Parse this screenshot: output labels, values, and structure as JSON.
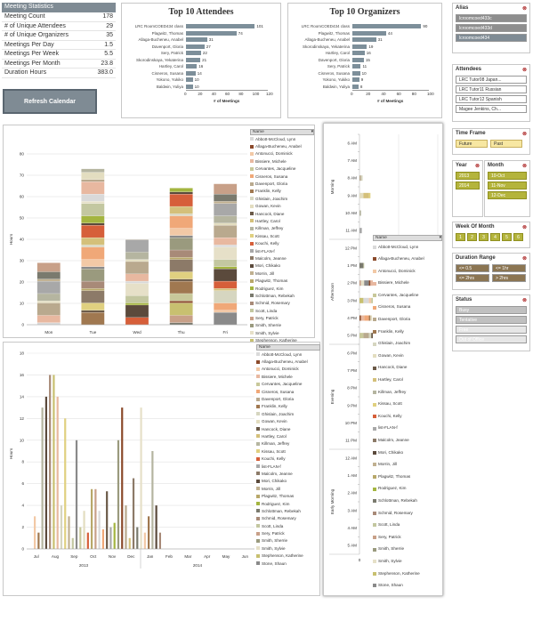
{
  "stats": {
    "title": "Meeting Statistics",
    "rows": [
      {
        "label": "Meeting Count",
        "value": "178"
      },
      {
        "label": "# of Unique Attendees",
        "value": "29"
      },
      {
        "label": "# of Unique Organizers",
        "value": "35"
      },
      {
        "label": "Meetings Per Day",
        "value": "1.5"
      },
      {
        "label": "Meetings Per Week",
        "value": "5.5"
      },
      {
        "label": "Meetings Per Month",
        "value": "23.8"
      },
      {
        "label": "Duration Hours",
        "value": "383.0"
      }
    ],
    "refresh_label": "Refresh Calendar"
  },
  "chart_data": [
    {
      "type": "bar",
      "title": "Top 10 Attendees",
      "xlabel": "# of Meetings",
      "xlim": [
        0,
        120
      ],
      "ticks": [
        "0",
        "20",
        "40",
        "60",
        "80",
        "100",
        "120"
      ],
      "categories": [
        "LRC RoomCOED434 class",
        "Plagwitz, Thomas",
        "Allaga-Bucheneu, Anabel",
        "Davenport, Gloria",
        "Sery, Patrick",
        "Skorodinskaya, Yekaterina",
        "Hartley, Carol",
        "Cisneros, Susana",
        "Yokono, Yukiko",
        "Baldwin, Yuliya"
      ],
      "values": [
        101,
        74,
        31,
        27,
        22,
        21,
        16,
        14,
        10,
        10
      ]
    },
    {
      "type": "bar",
      "title": "Top 10 Organizers",
      "xlabel": "# of Meetings",
      "xlim": [
        0,
        100
      ],
      "ticks": [
        "0",
        "20",
        "40",
        "60",
        "80",
        "100"
      ],
      "categories": [
        "LRC RoomCOED434 class",
        "Plagwitz, Thomas",
        "Allaga-Bucheneu, Anabel",
        "Skorodinskaya, Yekaterina",
        "Hartley, Carol",
        "Davenport, Gloria",
        "Sery, Patrick",
        "Cisneros, Susana",
        "Yokono, Yukiko",
        "Baldwin, Yuliya"
      ],
      "values": [
        90,
        44,
        31,
        19,
        16,
        15,
        11,
        10,
        9,
        8
      ]
    },
    {
      "type": "bar",
      "stacked": true,
      "ylabel": "Hours",
      "ylim": [
        0,
        80
      ],
      "yticks": [
        "0",
        "10",
        "20",
        "30",
        "40",
        "50",
        "60",
        "70",
        "80"
      ],
      "categories": [
        "Mon",
        "Tue",
        "Wed",
        "Thu",
        "Fri"
      ],
      "totals": [
        29,
        73,
        40,
        64,
        66
      ]
    },
    {
      "type": "bar",
      "ylabel": "Hours",
      "ylim": [
        0,
        18
      ],
      "yticks": [
        "0",
        "2",
        "4",
        "6",
        "8",
        "10",
        "12",
        "14",
        "16",
        "18"
      ],
      "months": [
        "Jul",
        "Aug",
        "Sep",
        "Oct",
        "Nov",
        "Dec",
        "Jan",
        "Feb",
        "Mar",
        "Apr",
        "May",
        "Jun"
      ],
      "years": [
        "2013",
        "2014"
      ],
      "values": [
        3.0,
        1.5,
        13.0,
        14.0,
        16.0,
        16.0,
        14.0,
        4.0,
        12.0,
        3.0,
        1.0,
        10.0,
        2.0,
        3.5,
        1.5,
        5.5,
        5.5,
        3.5,
        1.8,
        5.3,
        2.0,
        2.4,
        10.0,
        13.0,
        4.0,
        1.0,
        6.5,
        2.0,
        13.0,
        1.5,
        3.0,
        9.0,
        4.0,
        1.5
      ]
    },
    {
      "type": "bar",
      "orientation": "horizontal",
      "xlabel": "Hours",
      "xlim": [
        0,
        100
      ],
      "ticks": [
        "0",
        "50",
        "100"
      ],
      "groups": [
        "Morning",
        "Afternoon",
        "Evening",
        "Early Morning"
      ],
      "categories": [
        "6 AM",
        "7 AM",
        "8 AM",
        "9 AM",
        "10 AM",
        "11 AM",
        "12 PM",
        "1 PM",
        "2 PM",
        "3 PM",
        "4 PM",
        "5 PM",
        "6 PM",
        "7 PM",
        "8 PM",
        "9 PM",
        "10 PM",
        "11 PM",
        "12 AM",
        "1 AM",
        "2 AM",
        "3 AM",
        "4 AM",
        "5 AM"
      ],
      "values": [
        0,
        0,
        4,
        14,
        2,
        3,
        0,
        6,
        60,
        26,
        16,
        20,
        0,
        0,
        0,
        0,
        0,
        0,
        0,
        0,
        0,
        0,
        0,
        0
      ]
    }
  ],
  "legend": {
    "header": "Name",
    "names": [
      "Abbott-McCloud, Lynn",
      "Allaga-Bucheneu, Anabel",
      "Antonucci, Dominick",
      "Bissiere, Michele",
      "Cervantes, Jacqueline",
      "Cisneros, Susana",
      "Davenport, Gloria",
      "Franklin, Kelly",
      "Ghislain, Joachim",
      "Gowan, Kevin",
      "Hancock, Diane",
      "Hartley, Carol",
      "Killman, Jeffrey",
      "Kissau, Scott",
      "Kouchi, Kelly",
      "list-FLAN-f",
      "Malcolm, Jeanne",
      "Mori, Chikako",
      "Morrin, Jill",
      "Plagwitz, Thomas",
      "Rodriguez, Kim",
      "Schlottman, Rebekah",
      "Schmid, Rosemary",
      "Scott, Linda",
      "Sery, Patrick",
      "Smith, Sherrie",
      "Smith, Sylvie",
      "Stephenson, Katherine",
      "Stone, Shaun"
    ],
    "colors": [
      "#d9d9d9",
      "#8b4a2b",
      "#f2c9a6",
      "#e8b8a0",
      "#c8c89a",
      "#f0a878",
      "#b9a98e",
      "#a07850",
      "#d6d6c0",
      "#e3ddc0",
      "#6b5a48",
      "#d4c07a",
      "#b5b5a0",
      "#e0d080",
      "#d65f3a",
      "#a8a8a8",
      "#8c7a68",
      "#5b4a3c",
      "#c0b090",
      "#b8a86a",
      "#a4b540",
      "#7a7a6e",
      "#a88a78",
      "#c3c7a0",
      "#c8a088",
      "#9a9a7e",
      "#e6e0c8",
      "#c8c070",
      "#8a8a8a"
    ]
  },
  "slicers": {
    "alias": {
      "title": "Alias",
      "items": [
        "lcroomcoed433c",
        "lcroomcoed433d",
        "lcroomcoed434"
      ]
    },
    "attendees": {
      "title": "Attendees",
      "items": [
        "LRC Tutor08 Japan...",
        "LRC Tutor11 Russian",
        "LRC Tutor12 Spanish",
        "Magee Jenkins, Ch..."
      ]
    },
    "timeframe": {
      "title": "Time Frame",
      "items": [
        "Future",
        "Past"
      ]
    },
    "year": {
      "title": "Year",
      "items": [
        "2013",
        "2014"
      ]
    },
    "month": {
      "title": "Month",
      "items": [
        "10-Oct",
        "11-Nov",
        "12-Dec"
      ]
    },
    "weekofmonth": {
      "title": "Week Of Month",
      "items": [
        "1",
        "2",
        "3",
        "4",
        "5",
        "6"
      ]
    },
    "duration": {
      "title": "Duration Range",
      "items": [
        "<= 0.5",
        "<= 1hr",
        "<= 2hrs",
        "> 2hrs"
      ]
    },
    "status": {
      "title": "Status",
      "items": [
        "Busy",
        "Tentative",
        "Free",
        "Out of Office"
      ]
    }
  }
}
